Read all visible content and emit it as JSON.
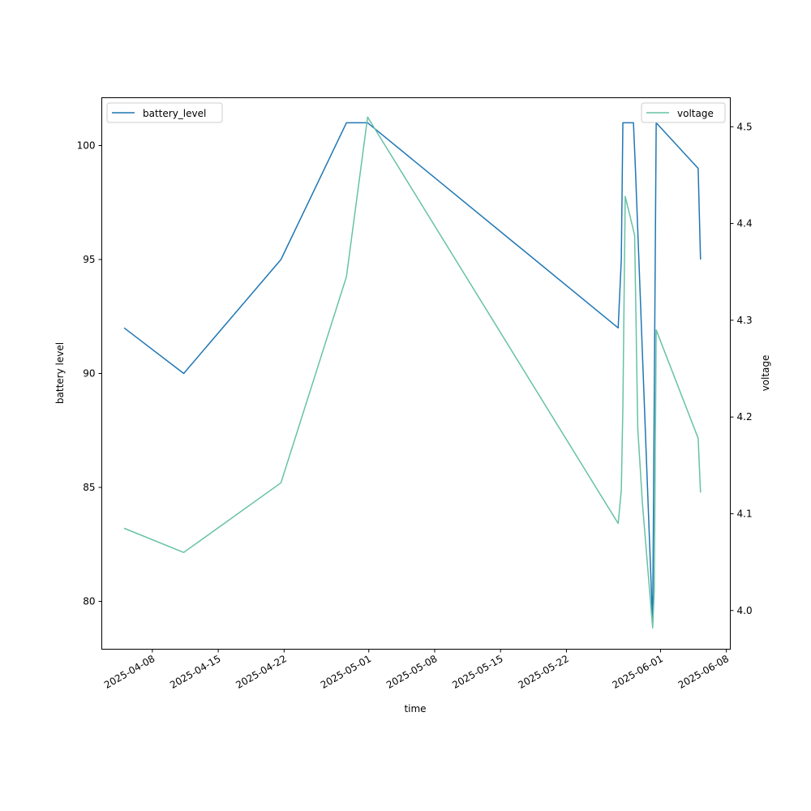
{
  "chart_data": {
    "type": "line",
    "xlabel": "time",
    "ylabel_left": "battery level",
    "ylabel_right": "voltage",
    "x_range": [
      "2025-04-02T15:00",
      "2025-06-08T10:00"
    ],
    "ylim_left": [
      77.9,
      102.1
    ],
    "ylim_right": [
      3.96,
      4.53
    ],
    "x_ticks": [
      "2025-04-08",
      "2025-04-15",
      "2025-04-22",
      "2025-05-01",
      "2025-05-08",
      "2025-05-15",
      "2025-05-22",
      "2025-06-01",
      "2025-06-08"
    ],
    "y_ticks_left": [
      80,
      85,
      90,
      95,
      100
    ],
    "y_ticks_right": [
      4.0,
      4.1,
      4.2,
      4.3,
      4.4,
      4.5
    ],
    "y_tick_labels_right": [
      "4.0",
      "4.1",
      "4.2",
      "4.3",
      "4.4",
      "4.5"
    ],
    "legend_left": {
      "placement": "upper left"
    },
    "legend_right": {
      "placement": "upper right"
    },
    "series": [
      {
        "name": "battery_level",
        "axis": "left",
        "color": "#1f77b4",
        "points": [
          [
            "2025-04-05T00:00",
            92
          ],
          [
            "2025-04-11T08:00",
            90
          ],
          [
            "2025-04-21T16:00",
            95
          ],
          [
            "2025-04-28T15:00",
            101
          ],
          [
            "2025-04-30T21:00",
            101
          ],
          [
            "2025-05-27T12:00",
            92
          ],
          [
            "2025-05-27T20:00",
            95
          ],
          [
            "2025-05-28T00:00",
            101
          ],
          [
            "2025-05-29T03:00",
            101
          ],
          [
            "2025-05-29T08:00",
            99
          ],
          [
            "2025-05-31T04:00",
            79
          ],
          [
            "2025-05-31T13:00",
            101
          ],
          [
            "2025-06-05T00:00",
            99
          ],
          [
            "2025-06-05T06:00",
            95
          ]
        ]
      },
      {
        "name": "voltage",
        "axis": "right",
        "color": "#66c2a5",
        "points": [
          [
            "2025-04-05T00:00",
            4.085
          ],
          [
            "2025-04-11T08:00",
            4.06
          ],
          [
            "2025-04-21T16:00",
            4.132
          ],
          [
            "2025-04-28T15:00",
            4.345
          ],
          [
            "2025-04-30T21:00",
            4.51
          ],
          [
            "2025-05-27T12:00",
            4.09
          ],
          [
            "2025-05-27T20:00",
            4.124
          ],
          [
            "2025-05-28T00:00",
            4.21
          ],
          [
            "2025-05-28T06:00",
            4.428
          ],
          [
            "2025-05-29T06:00",
            4.388
          ],
          [
            "2025-05-29T14:00",
            4.188
          ],
          [
            "2025-05-30T02:00",
            4.11
          ],
          [
            "2025-05-31T04:00",
            3.982
          ],
          [
            "2025-05-31T08:00",
            4.02
          ],
          [
            "2025-05-31T13:00",
            4.29
          ],
          [
            "2025-06-05T00:00",
            4.178
          ],
          [
            "2025-06-05T06:00",
            4.122
          ]
        ]
      }
    ]
  }
}
